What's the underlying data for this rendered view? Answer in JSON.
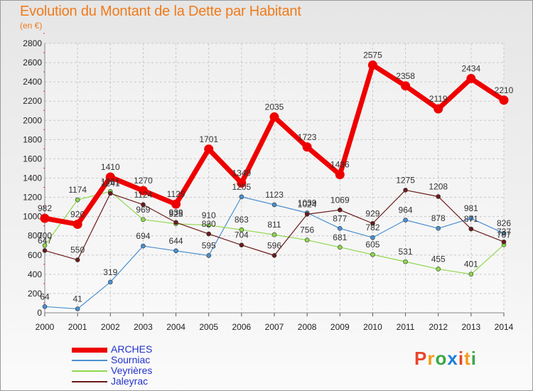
{
  "title": "Evolution du Montant de la Dette par Habitant",
  "unit": "(en €)",
  "logo": {
    "letters": [
      "P",
      "r",
      "o",
      "x",
      "i",
      "t",
      "i"
    ],
    "colors": [
      "#e8452b",
      "#f39b1c",
      "#3aa845",
      "#1c7fd6",
      "#e8452b",
      "#f39b1c",
      "#3aa845"
    ]
  },
  "chart_data": {
    "type": "line",
    "x": [
      2000,
      2001,
      2002,
      2003,
      2004,
      2005,
      2006,
      2007,
      2008,
      2009,
      2010,
      2011,
      2012,
      2013,
      2014
    ],
    "ylim": [
      0,
      2800
    ],
    "yticks": [
      0,
      200,
      400,
      600,
      800,
      1000,
      1200,
      1400,
      1600,
      1800,
      2000,
      2200,
      2400,
      2600,
      2800
    ],
    "grid": true,
    "legend_position": "bottom-left",
    "series": [
      {
        "name": "Sourniac",
        "color": "#4a8fd0",
        "width": 1.2,
        "values": [
          64,
          41,
          319,
          694,
          644,
          595,
          1205,
          1123,
          1039,
          877,
          782,
          964,
          878,
          981,
          826
        ],
        "labels": [
          "64",
          "41",
          "319",
          "694",
          "644",
          "595",
          "1205",
          "1123",
          "1039",
          "877",
          "782",
          "964",
          "878",
          "981",
          "826"
        ]
      },
      {
        "name": "Veyrières",
        "color": "#8fd84e",
        "width": 1.2,
        "values": [
          700,
          1174,
          1261,
          969,
          925,
          910,
          863,
          811,
          756,
          681,
          605,
          531,
          455,
          401,
          707
        ],
        "labels": [
          "700",
          "1174",
          "1261",
          "969",
          "925",
          "910",
          "863",
          "811",
          "756",
          "681",
          "605",
          "531",
          "455",
          "401",
          "707"
        ]
      },
      {
        "name": "Jaleyrac",
        "color": "#6b1a1a",
        "width": 1.2,
        "values": [
          647,
          550,
          1241,
          1124,
          939,
          820,
          704,
          596,
          1024,
          1069,
          929,
          1275,
          1208,
          871,
          737
        ],
        "labels": [
          "647",
          "550",
          "1241",
          "1124",
          "939",
          "820",
          "704",
          "596",
          "1024",
          "1069",
          "929",
          "1275",
          "1208",
          "871",
          "737"
        ]
      },
      {
        "name": "ARCHES",
        "color": "#ee0000",
        "width": 7,
        "values": [
          982,
          920,
          1410,
          1270,
          1129,
          1701,
          1349,
          2035,
          1723,
          1436,
          2575,
          2358,
          2119,
          2434,
          2210
        ],
        "labels": [
          "982",
          "920",
          "1410",
          "1270",
          "1129",
          "1701",
          "1349",
          "2035",
          "1723",
          "1436",
          "2575",
          "2358",
          "2119",
          "2434",
          "2210"
        ]
      }
    ]
  }
}
